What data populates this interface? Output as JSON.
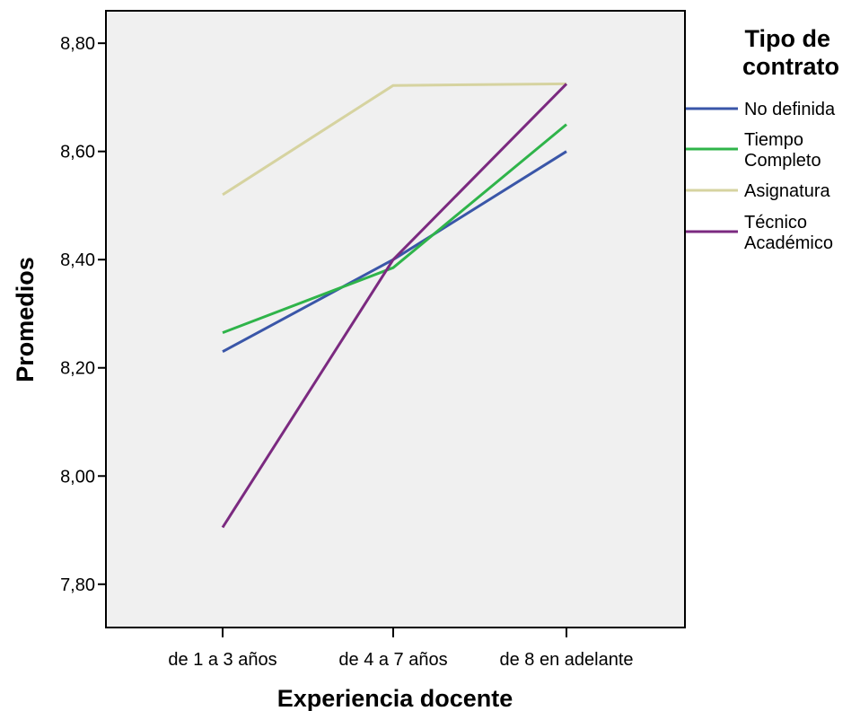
{
  "chart_data": {
    "type": "line",
    "xlabel": "Experiencia docente",
    "ylabel": "Promedios",
    "categories": [
      "de 1 a 3 años",
      "de 4 a 7 años",
      "de 8 en adelante"
    ],
    "ylim": [
      7.72,
      8.86
    ],
    "yticks": [
      7.8,
      8.0,
      8.2,
      8.4,
      8.6,
      8.8
    ],
    "ytick_labels": [
      "7,80",
      "8,00",
      "8,20",
      "8,40",
      "8,60",
      "8,80"
    ],
    "grid": false,
    "plot_background": "#f0f0f0",
    "legend": {
      "title": "Tipo de contrato",
      "title_lines": [
        "Tipo de",
        "contrato"
      ],
      "placement": "right"
    },
    "series": [
      {
        "name": "No definida",
        "label_lines": [
          "No definida"
        ],
        "color": "#3a56a8",
        "values": [
          8.23,
          8.4,
          8.6
        ]
      },
      {
        "name": "Tiempo Completo",
        "label_lines": [
          "Tiempo",
          "Completo"
        ],
        "color": "#2fb44a",
        "values": [
          8.265,
          8.385,
          8.65
        ]
      },
      {
        "name": "Asignatura",
        "label_lines": [
          "Asignatura"
        ],
        "color": "#d6d3a0",
        "values": [
          8.52,
          8.722,
          8.725
        ]
      },
      {
        "name": "Técnico Académico",
        "label_lines": [
          "Técnico",
          "Académico"
        ],
        "color": "#7b2a80",
        "values": [
          7.905,
          8.4,
          8.725
        ]
      }
    ]
  }
}
